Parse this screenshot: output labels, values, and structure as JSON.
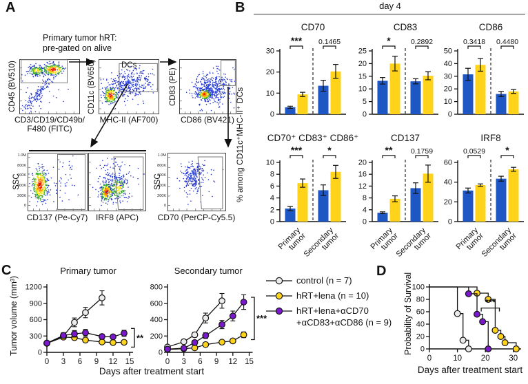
{
  "figure": {
    "panel_labels": {
      "A": "A",
      "B": "B",
      "C": "C",
      "D": "D"
    }
  },
  "colors": {
    "blue": "#1e56c3",
    "yellow": "#ffd31a",
    "purple": "#7a18cc",
    "control": "#ebebeb",
    "axis": "#111111"
  },
  "panel_a": {
    "caption_line1": "Primary tumor hRT:",
    "caption_line2": "pre-gated on alive",
    "plots": {
      "p1": {
        "ylabel": "CD45 (BV510)",
        "xlabel1": "CD3/CD19/CD49b/",
        "xlabel2": "F480 (FITC)"
      },
      "p2": {
        "ylabel": "CD11c (BV650)",
        "xlabel": "MHC-II (AF700)",
        "gate": "DCs"
      },
      "p3": {
        "ylabel": "CD83 (PE)",
        "xlabel": "CD86 (BV421)"
      },
      "p4": {
        "ylabel": "SSC",
        "xlabel": "CD137 (Pe-Cy7)"
      },
      "p5": {
        "xlabel": "IRF8 (APC)"
      },
      "p6": {
        "ylabel": "SSC",
        "xlabel": "CD70 (PerCP-Cy5.5)"
      }
    },
    "ssc_ticks": [
      "1.0M",
      "800K",
      "600K",
      "400K",
      "200K",
      "0"
    ]
  },
  "panel_b": {
    "header": "day 4",
    "ylabel": "% among CD11c⁺MHC-II⁺ DCs"
  },
  "panel_c": {
    "ylabel": "Tumor volume (mm³)",
    "xlabel": "Days after treatment start",
    "legend": [
      {
        "label": "control (n = 7)",
        "color_key": "control"
      },
      {
        "label": "hRT+lena (n = 10)",
        "color_key": "yellow"
      },
      {
        "label": "hRT+lena+αCD70",
        "label2": "+αCD83+αCD86 (n = 9)",
        "color_key": "purple"
      }
    ]
  },
  "panel_d": {
    "ylabel": "Probability of Survival",
    "xlabel": "Days after treatment start"
  },
  "chart_data": [
    {
      "type": "bar",
      "panel": "B",
      "title": "CD70",
      "ylim": [
        0,
        30
      ],
      "yticks": [
        0,
        10,
        20,
        30
      ],
      "groups": [
        "Primary tumor",
        "Secondary tumor"
      ],
      "series": [
        {
          "name": "hRT",
          "color_key": "blue",
          "values": [
            3.3,
            13.5
          ],
          "errors": [
            0.5,
            2.6
          ]
        },
        {
          "name": "hRT+lena",
          "color_key": "yellow",
          "values": [
            9.4,
            20.3
          ],
          "errors": [
            1.0,
            3.3
          ]
        }
      ],
      "sig": [
        "***",
        "0.1465"
      ]
    },
    {
      "type": "bar",
      "panel": "B",
      "title": "CD83",
      "ylim": [
        0,
        25
      ],
      "yticks": [
        0,
        5,
        10,
        15,
        20,
        25
      ],
      "groups": [
        "Primary tumor",
        "Secondary tumor"
      ],
      "series": [
        {
          "name": "hRT",
          "color_key": "blue",
          "values": [
            13.2,
            13.0
          ],
          "errors": [
            1.3,
            1.0
          ]
        },
        {
          "name": "hRT+lena",
          "color_key": "yellow",
          "values": [
            20.0,
            15.2
          ],
          "errors": [
            2.9,
            1.6
          ]
        }
      ],
      "sig": [
        "*",
        "0.2892"
      ]
    },
    {
      "type": "bar",
      "panel": "B",
      "title": "CD86",
      "ylim": [
        0,
        50
      ],
      "yticks": [
        0,
        10,
        20,
        30,
        40,
        50
      ],
      "groups": [
        "Primary tumor",
        "Secondary tumor"
      ],
      "series": [
        {
          "name": "hRT",
          "color_key": "blue",
          "values": [
            31.5,
            16.0
          ],
          "errors": [
            4.8,
            2.0
          ]
        },
        {
          "name": "hRT+lena",
          "color_key": "yellow",
          "values": [
            39.0,
            18.0
          ],
          "errors": [
            5.0,
            1.5
          ]
        }
      ],
      "sig": [
        "0.3418",
        "0.4480"
      ]
    },
    {
      "type": "bar",
      "panel": "B",
      "title": "CD70⁺ CD83⁺ CD86⁺",
      "ylim": [
        0,
        10
      ],
      "yticks": [
        0,
        2,
        4,
        6,
        8,
        10
      ],
      "groups": [
        "Primary tumor",
        "Secondary tumor"
      ],
      "series": [
        {
          "name": "hRT",
          "color_key": "blue",
          "values": [
            2.2,
            5.3
          ],
          "errors": [
            0.35,
            0.9
          ]
        },
        {
          "name": "hRT+lena",
          "color_key": "yellow",
          "values": [
            6.5,
            8.4
          ],
          "errors": [
            0.7,
            1.1
          ]
        }
      ],
      "sig": [
        "***",
        "*"
      ]
    },
    {
      "type": "bar",
      "panel": "B",
      "title": "CD137",
      "ylim": [
        0,
        20
      ],
      "yticks": [
        0,
        4,
        8,
        12,
        16,
        20
      ],
      "groups": [
        "Primary tumor",
        "Secondary tumor"
      ],
      "series": [
        {
          "name": "hRT",
          "color_key": "blue",
          "values": [
            3.0,
            11.3
          ],
          "errors": [
            0.3,
            1.8
          ]
        },
        {
          "name": "hRT+lena",
          "color_key": "yellow",
          "values": [
            7.7,
            16.2
          ],
          "errors": [
            1.0,
            2.9
          ]
        }
      ],
      "sig": [
        "**",
        "0.1759"
      ]
    },
    {
      "type": "bar",
      "panel": "B",
      "title": "IRF8",
      "ylim": [
        0,
        60
      ],
      "yticks": [
        0,
        20,
        40,
        60
      ],
      "groups": [
        "Primary tumor",
        "Secondary tumor"
      ],
      "series": [
        {
          "name": "hRT",
          "color_key": "blue",
          "values": [
            31.5,
            43.5
          ],
          "errors": [
            2.5,
            2.5
          ]
        },
        {
          "name": "hRT+lena",
          "color_key": "yellow",
          "values": [
            37.0,
            53.0
          ],
          "errors": [
            1.2,
            2.0
          ]
        }
      ],
      "sig": [
        "0.0529",
        "*"
      ]
    },
    {
      "type": "line",
      "panel": "C",
      "title": "Primary tumor",
      "ylim": [
        0,
        1200
      ],
      "yticks": [
        0,
        300,
        600,
        900,
        1200
      ],
      "xlim": [
        0,
        15
      ],
      "xticks": [
        0,
        3,
        6,
        9,
        12,
        15
      ],
      "series": [
        {
          "name": "control",
          "color_key": "control",
          "x": [
            0,
            3,
            5,
            7,
            10
          ],
          "y": [
            170,
            300,
            550,
            730,
            1000
          ],
          "err": [
            40,
            60,
            80,
            95,
            130
          ]
        },
        {
          "name": "hRT+lena",
          "color_key": "yellow",
          "x": [
            0,
            3,
            5,
            7,
            10,
            12,
            14
          ],
          "y": [
            165,
            280,
            270,
            225,
            190,
            180,
            185
          ],
          "err": [
            30,
            40,
            40,
            35,
            30,
            25,
            30
          ]
        },
        {
          "name": "hRT+lena+αCD70+αCD83+αCD86",
          "color_key": "purple",
          "x": [
            0,
            3,
            5,
            7,
            10,
            12,
            14
          ],
          "y": [
            170,
            310,
            340,
            360,
            290,
            285,
            350
          ],
          "err": [
            35,
            50,
            60,
            60,
            45,
            40,
            55
          ]
        }
      ],
      "sig": "**",
      "sig_span": [
        350,
        185
      ]
    },
    {
      "type": "line",
      "panel": "C",
      "title": "Secondary tumor",
      "ylim": [
        0,
        800
      ],
      "yticks": [
        0,
        200,
        400,
        600,
        800
      ],
      "xlim": [
        0,
        15
      ],
      "xticks": [
        0,
        3,
        6,
        9,
        12,
        15
      ],
      "series": [
        {
          "name": "control",
          "color_key": "control",
          "x": [
            0,
            3,
            5,
            7,
            10
          ],
          "y": [
            65,
            130,
            215,
            420,
            630
          ],
          "err": [
            20,
            25,
            30,
            60,
            90
          ]
        },
        {
          "name": "hRT+lena",
          "color_key": "yellow",
          "x": [
            0,
            3,
            5,
            7,
            10,
            12,
            14
          ],
          "y": [
            35,
            45,
            55,
            95,
            125,
            140,
            215
          ],
          "err": [
            10,
            12,
            15,
            20,
            25,
            25,
            35
          ]
        },
        {
          "name": "hRT+lena+αCD70+αCD83+αCD86",
          "color_key": "purple",
          "x": [
            0,
            3,
            5,
            7,
            10,
            12,
            14
          ],
          "y": [
            40,
            50,
            120,
            205,
            340,
            445,
            615
          ],
          "err": [
            12,
            15,
            25,
            35,
            50,
            60,
            90
          ]
        }
      ],
      "sig": "***",
      "sig_span": [
        615,
        215
      ]
    },
    {
      "type": "step",
      "panel": "D",
      "title": "",
      "ylim": [
        0,
        100
      ],
      "yticks": [
        0,
        20,
        40,
        60,
        80,
        100
      ],
      "xlim": [
        0,
        31.5
      ],
      "xticks": [
        0,
        10,
        20,
        30
      ],
      "series": [
        {
          "name": "control",
          "color_key": "control",
          "points": [
            [
              0,
              100
            ],
            [
              10,
              100
            ],
            [
              10,
              57
            ],
            [
              12,
              57
            ],
            [
              12,
              14
            ],
            [
              14,
              14
            ],
            [
              14,
              0
            ]
          ],
          "markers": [
            [
              10,
              57
            ],
            [
              12,
              14
            ],
            [
              14,
              0
            ]
          ]
        },
        {
          "name": "hRT+lena",
          "color_key": "yellow",
          "points": [
            [
              0,
              100
            ],
            [
              17,
              100
            ],
            [
              17,
              90
            ],
            [
              21,
              90
            ],
            [
              21,
              80
            ],
            [
              23.5,
              80
            ],
            [
              23.5,
              30
            ],
            [
              25.5,
              30
            ],
            [
              25.5,
              20
            ],
            [
              27,
              20
            ],
            [
              27,
              10
            ],
            [
              31,
              10
            ],
            [
              31,
              0
            ]
          ],
          "markers": [
            [
              17,
              90
            ],
            [
              21,
              80
            ],
            [
              23.5,
              30
            ],
            [
              25.5,
              20
            ],
            [
              27,
              10
            ],
            [
              31,
              0
            ]
          ]
        },
        {
          "name": "hRT+lena+αCD70+αCD83+αCD86",
          "color_key": "purple",
          "points": [
            [
              0,
              100
            ],
            [
              14,
              100
            ],
            [
              14,
              89
            ],
            [
              17,
              89
            ],
            [
              17,
              56
            ],
            [
              19,
              56
            ],
            [
              19,
              44
            ],
            [
              21,
              44
            ],
            [
              21,
              0
            ]
          ],
          "markers": [
            [
              14,
              89
            ],
            [
              17,
              56
            ],
            [
              19,
              44
            ],
            [
              21,
              0
            ]
          ]
        }
      ],
      "sig": "***"
    }
  ]
}
